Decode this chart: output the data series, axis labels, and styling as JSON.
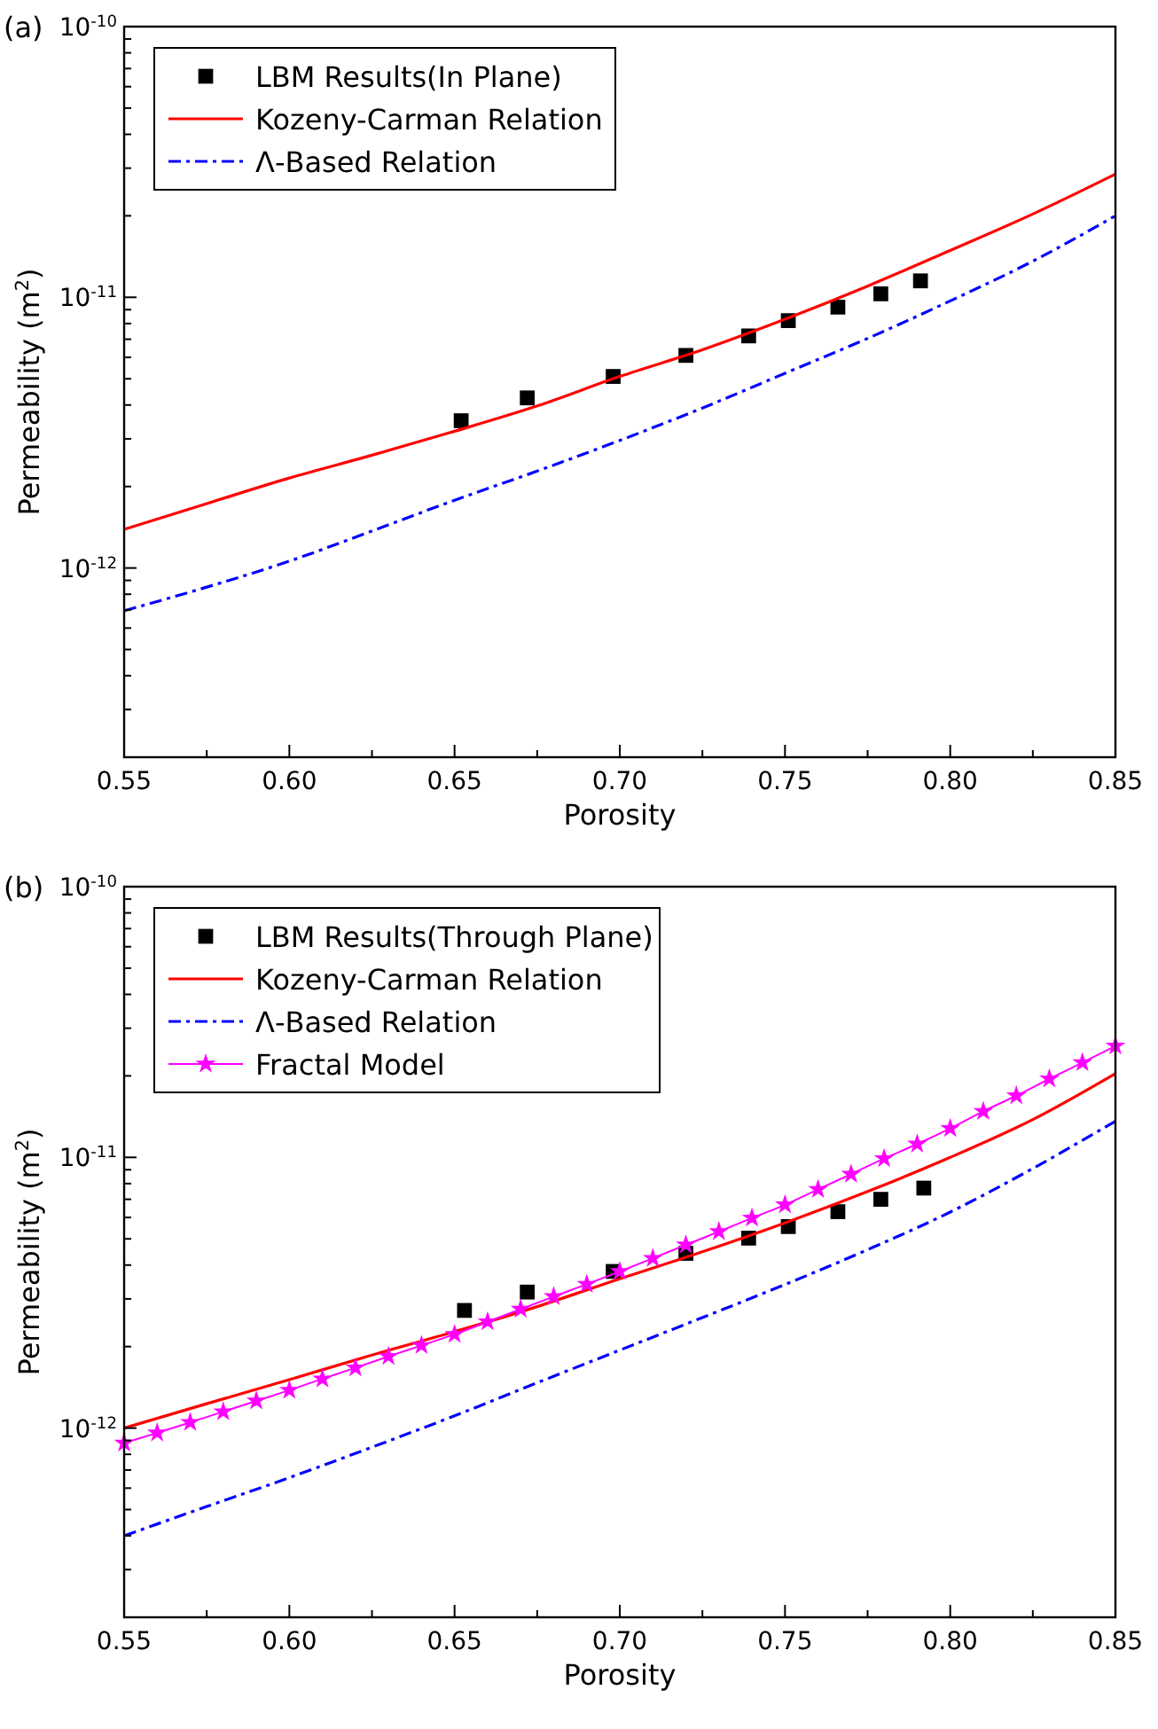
{
  "chart_data": [
    {
      "type": "line",
      "title": "(a)",
      "xlabel": "Porosity",
      "ylabel": "Permeability (m$^{2}$)",
      "log": "y",
      "grid": false,
      "legend": "top left",
      "xlim": [
        0.55,
        0.85
      ],
      "xticks": [
        {
          "value": 0.55,
          "label": "0.55"
        },
        {
          "value": 0.575,
          "label": null
        },
        {
          "value": 0.6,
          "label": "0.60"
        },
        {
          "value": 0.625,
          "label": null
        },
        {
          "value": 0.65,
          "label": "0.65"
        },
        {
          "value": 0.675,
          "label": null
        },
        {
          "value": 0.7,
          "label": "0.70"
        },
        {
          "value": 0.725,
          "label": null
        },
        {
          "value": 0.75,
          "label": "0.75"
        },
        {
          "value": 0.775,
          "label": null
        },
        {
          "value": 0.8,
          "label": "0.80"
        },
        {
          "value": 0.825,
          "label": null
        },
        {
          "value": 0.85,
          "label": "0.85"
        }
      ],
      "ylim": [
        2e-13,
        1e-10
      ],
      "yticks": [
        {
          "value": 2e-13,
          "label": null
        },
        {
          "value": 3e-13,
          "label": null
        },
        {
          "value": 4e-13,
          "label": null
        },
        {
          "value": 5e-13,
          "label": null
        },
        {
          "value": 6e-13,
          "label": null
        },
        {
          "value": 7e-13,
          "label": null
        },
        {
          "value": 8e-13,
          "label": null
        },
        {
          "value": 9e-13,
          "label": null
        },
        {
          "value": 1e-12,
          "label": "10$^{-12}$"
        },
        {
          "value": 2e-12,
          "label": null
        },
        {
          "value": 3e-12,
          "label": null
        },
        {
          "value": 4e-12,
          "label": null
        },
        {
          "value": 5e-12,
          "label": null
        },
        {
          "value": 6e-12,
          "label": null
        },
        {
          "value": 7e-12,
          "label": null
        },
        {
          "value": 8e-12,
          "label": null
        },
        {
          "value": 9e-12,
          "label": null
        },
        {
          "value": 1e-11,
          "label": "10$^{-11}$"
        },
        {
          "value": 2e-11,
          "label": null
        },
        {
          "value": 3e-11,
          "label": null
        },
        {
          "value": 4e-11,
          "label": null
        },
        {
          "value": 5e-11,
          "label": null
        },
        {
          "value": 6e-11,
          "label": null
        },
        {
          "value": 7e-11,
          "label": null
        },
        {
          "value": 8e-11,
          "label": null
        },
        {
          "value": 9e-11,
          "label": null
        },
        {
          "value": 1e-10,
          "label": "10$^{-10}$"
        }
      ],
      "series": [
        {
          "name": "LBM Results(In Plane)",
          "type": "scatter",
          "marker": "square",
          "color": "#000000",
          "x": [
            0.652,
            0.672,
            0.698,
            0.72,
            0.739,
            0.751,
            0.766,
            0.779,
            0.791
          ],
          "values": [
            3.5e-12,
            4.25e-12,
            5.1e-12,
            6.1e-12,
            7.2e-12,
            8.2e-12,
            9.2e-12,
            1.03e-11,
            1.15e-11
          ]
        },
        {
          "name": "Kozeny-Carman Relation",
          "type": "line",
          "line_style": "solid",
          "color": "#ff0000",
          "x": [
            0.55,
            0.575,
            0.6,
            0.625,
            0.65,
            0.675,
            0.7,
            0.725,
            0.75,
            0.775,
            0.8,
            0.825,
            0.85
          ],
          "values": [
            1.39e-12,
            1.73e-12,
            2.15e-12,
            2.61e-12,
            3.2e-12,
            3.97e-12,
            5.1e-12,
            6.4e-12,
            8.3e-12,
            1.1e-11,
            1.49e-11,
            2.03e-11,
            2.85e-11
          ]
        },
        {
          "name": "Λ-Based Relation",
          "type": "line",
          "line_style": "dashdot",
          "color": "#0000ff",
          "x": [
            0.55,
            0.575,
            0.6,
            0.625,
            0.65,
            0.675,
            0.7,
            0.725,
            0.75,
            0.775,
            0.8,
            0.825,
            0.85
          ],
          "values": [
            6.95e-13,
            8.5e-13,
            1.06e-12,
            1.37e-12,
            1.78e-12,
            2.28e-12,
            2.96e-12,
            3.9e-12,
            5.24e-12,
            7.05e-12,
            9.7e-12,
            1.36e-11,
            2e-11
          ]
        }
      ]
    },
    {
      "type": "line",
      "title": "(b)",
      "xlabel": "Porosity",
      "ylabel": "Permeability (m$^{2}$)",
      "log": "y",
      "grid": false,
      "legend": "top left",
      "xlim": [
        0.55,
        0.85
      ],
      "xticks": [
        {
          "value": 0.55,
          "label": "0.55"
        },
        {
          "value": 0.575,
          "label": null
        },
        {
          "value": 0.6,
          "label": "0.60"
        },
        {
          "value": 0.625,
          "label": null
        },
        {
          "value": 0.65,
          "label": "0.65"
        },
        {
          "value": 0.675,
          "label": null
        },
        {
          "value": 0.7,
          "label": "0.70"
        },
        {
          "value": 0.725,
          "label": null
        },
        {
          "value": 0.75,
          "label": "0.75"
        },
        {
          "value": 0.775,
          "label": null
        },
        {
          "value": 0.8,
          "label": "0.80"
        },
        {
          "value": 0.825,
          "label": null
        },
        {
          "value": 0.85,
          "label": "0.85"
        }
      ],
      "ylim": [
        2e-13,
        1e-10
      ],
      "yticks": [
        {
          "value": 2e-13,
          "label": null
        },
        {
          "value": 3e-13,
          "label": null
        },
        {
          "value": 4e-13,
          "label": null
        },
        {
          "value": 5e-13,
          "label": null
        },
        {
          "value": 6e-13,
          "label": null
        },
        {
          "value": 7e-13,
          "label": null
        },
        {
          "value": 8e-13,
          "label": null
        },
        {
          "value": 9e-13,
          "label": null
        },
        {
          "value": 1e-12,
          "label": "10$^{-12}$"
        },
        {
          "value": 2e-12,
          "label": null
        },
        {
          "value": 3e-12,
          "label": null
        },
        {
          "value": 4e-12,
          "label": null
        },
        {
          "value": 5e-12,
          "label": null
        },
        {
          "value": 6e-12,
          "label": null
        },
        {
          "value": 7e-12,
          "label": null
        },
        {
          "value": 8e-12,
          "label": null
        },
        {
          "value": 9e-12,
          "label": null
        },
        {
          "value": 1e-11,
          "label": "10$^{-11}$"
        },
        {
          "value": 2e-11,
          "label": null
        },
        {
          "value": 3e-11,
          "label": null
        },
        {
          "value": 4e-11,
          "label": null
        },
        {
          "value": 5e-11,
          "label": null
        },
        {
          "value": 6e-11,
          "label": null
        },
        {
          "value": 7e-11,
          "label": null
        },
        {
          "value": 8e-11,
          "label": null
        },
        {
          "value": 9e-11,
          "label": null
        },
        {
          "value": 1e-10,
          "label": "10$^{-10}$"
        }
      ],
      "series": [
        {
          "name": "LBM Results(Through Plane)",
          "type": "scatter",
          "marker": "square",
          "color": "#000000",
          "x": [
            0.653,
            0.672,
            0.698,
            0.72,
            0.739,
            0.751,
            0.766,
            0.779,
            0.792
          ],
          "values": [
            2.72e-12,
            3.18e-12,
            3.79e-12,
            4.42e-12,
            5.03e-12,
            5.55e-12,
            6.3e-12,
            7e-12,
            7.7e-12
          ]
        },
        {
          "name": "Kozeny-Carman Relation",
          "type": "line",
          "line_style": "solid",
          "color": "#ff0000",
          "x": [
            0.55,
            0.575,
            0.6,
            0.625,
            0.65,
            0.675,
            0.7,
            0.725,
            0.75,
            0.775,
            0.8,
            0.825,
            0.85
          ],
          "values": [
            1e-12,
            1.23e-12,
            1.51e-12,
            1.86e-12,
            2.27e-12,
            2.81e-12,
            3.56e-12,
            4.48e-12,
            5.73e-12,
            7.48e-12,
            1e-11,
            1.38e-11,
            2.04e-11
          ]
        },
        {
          "name": "Λ-Based Relation",
          "type": "line",
          "line_style": "dashdot",
          "color": "#0000ff",
          "x": [
            0.55,
            0.575,
            0.6,
            0.625,
            0.65,
            0.675,
            0.7,
            0.725,
            0.75,
            0.775,
            0.8,
            0.825,
            0.85
          ],
          "values": [
            4e-13,
            5.13e-13,
            6.56e-13,
            8.5e-13,
            1.11e-12,
            1.47e-12,
            1.94e-12,
            2.56e-12,
            3.39e-12,
            4.56e-12,
            6.28e-12,
            9.1e-12,
            1.36e-11
          ]
        },
        {
          "name": "Fractal Model",
          "type": "line",
          "line_style": "solid",
          "marker": "star",
          "color": "#ff00ff",
          "x": [
            0.55,
            0.56,
            0.57,
            0.58,
            0.59,
            0.6,
            0.61,
            0.62,
            0.63,
            0.64,
            0.65,
            0.66,
            0.67,
            0.68,
            0.69,
            0.7,
            0.71,
            0.72,
            0.73,
            0.74,
            0.75,
            0.76,
            0.77,
            0.78,
            0.79,
            0.8,
            0.81,
            0.82,
            0.83,
            0.84,
            0.85
          ],
          "values": [
            8.8e-13,
            9.6e-13,
            1.05e-12,
            1.15e-12,
            1.26e-12,
            1.38e-12,
            1.52e-12,
            1.67e-12,
            1.84e-12,
            2.02e-12,
            2.22e-12,
            2.47e-12,
            2.75e-12,
            3.06e-12,
            3.4e-12,
            3.79e-12,
            4.24e-12,
            4.75e-12,
            5.32e-12,
            5.97e-12,
            6.68e-12,
            7.62e-12,
            8.67e-12,
            9.9e-12,
            1.12e-11,
            1.28e-11,
            1.48e-11,
            1.69e-11,
            1.95e-11,
            2.24e-11,
            2.58e-11
          ]
        }
      ]
    }
  ]
}
